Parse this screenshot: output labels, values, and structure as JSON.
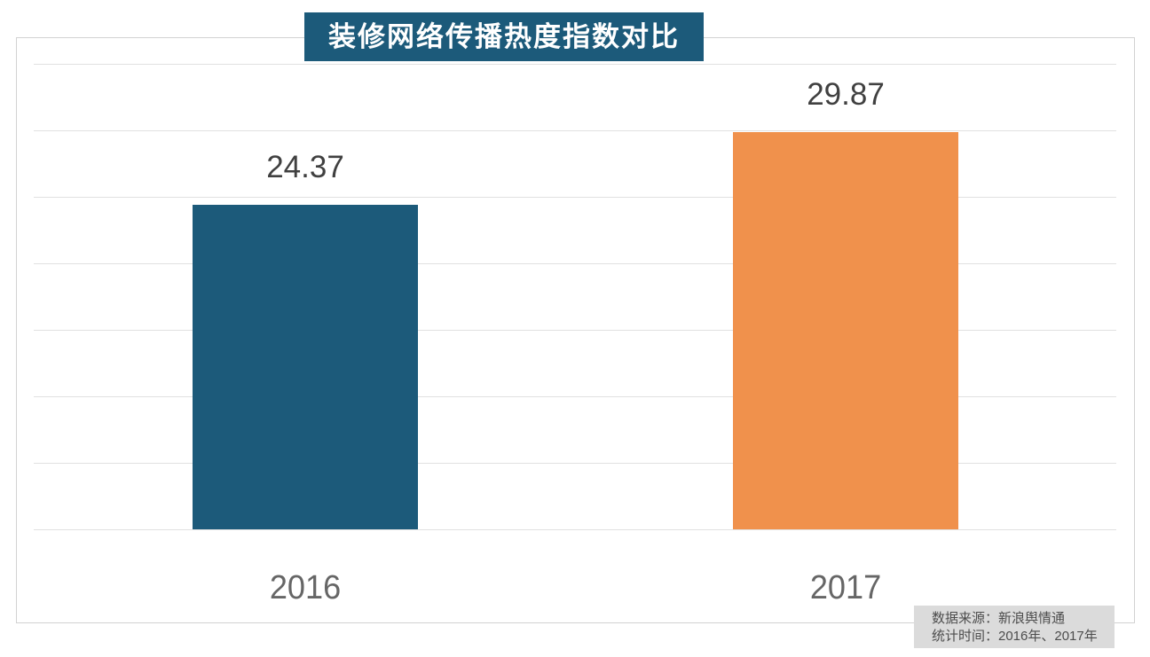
{
  "page": {
    "background": "#FFFFFF",
    "frame_border_color": "#D2D2D2",
    "gridline_color": "#E1E1E1"
  },
  "chart_data": {
    "type": "bar",
    "title": "装修网络传播热度指数对比",
    "title_bg": "#1C5A7A",
    "title_color": "#FFFFFF",
    "categories": [
      "2016",
      "2017"
    ],
    "values": [
      24.37,
      29.87
    ],
    "value_labels": [
      "24.37",
      "29.87"
    ],
    "bar_colors": [
      "#1C5A7A",
      "#F0914C"
    ],
    "value_label_color": "#404040",
    "x_label_color": "#666666",
    "xlabel": "",
    "ylabel": "",
    "ylim": [
      0,
      35
    ],
    "grid_step": 5,
    "grid": true,
    "legend": "none"
  },
  "footer": {
    "lines": [
      "数据来源：新浪舆情通",
      "统计时间：2016年、2017年"
    ],
    "bg": "#DBDBDB"
  }
}
